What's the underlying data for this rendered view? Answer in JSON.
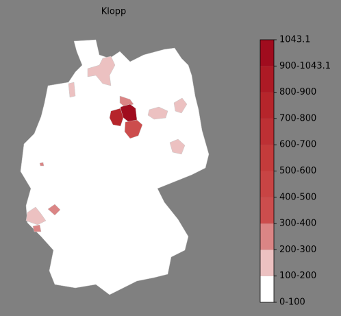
{
  "title": "Klopp",
  "legend": {
    "labels": [
      "0-100",
      "100-200",
      "200-300",
      "300-400",
      "400-500",
      "500-600",
      "600-700",
      "700-800",
      "800-900",
      "900-1043.1",
      "1043.1"
    ],
    "colors": [
      "#ffffff",
      "#ecc1c1",
      "#db8585",
      "#cc4d4d",
      "#c84444",
      "#c43b3b",
      "#bd3034",
      "#b6252b",
      "#ad1a25",
      "#a00c1e"
    ]
  }
}
